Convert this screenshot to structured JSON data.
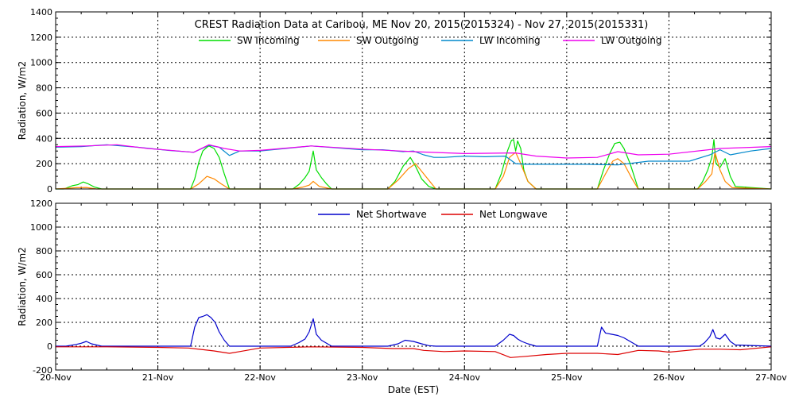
{
  "chart_data": [
    {
      "type": "line",
      "title": "CREST Radiation Data at Caribou, ME   Nov 20, 2015(2015324) - Nov 27, 2015(2015331)",
      "xlabel": "",
      "ylabel": "Radiation, W/m2",
      "xlim": [
        "20-Nov",
        "27-Nov"
      ],
      "ylim": [
        0,
        1400
      ],
      "yticks": [
        0,
        200,
        400,
        600,
        800,
        1000,
        1200,
        1400
      ],
      "x_unit": "days since 20-Nov",
      "grid": true,
      "legend_position": "top",
      "series": [
        {
          "name": "SW Incoming",
          "color": "#00dd00",
          "x": [
            0,
            0.08,
            0.16,
            0.22,
            0.27,
            0.32,
            0.38,
            0.45,
            1.32,
            1.36,
            1.4,
            1.44,
            1.48,
            1.5,
            1.55,
            1.6,
            1.65,
            1.7,
            2.32,
            2.38,
            2.44,
            2.48,
            2.52,
            2.55,
            2.6,
            2.65,
            2.7,
            3.25,
            3.32,
            3.4,
            3.47,
            3.52,
            3.58,
            3.65,
            3.72,
            4.3,
            4.36,
            4.42,
            4.46,
            4.48,
            4.5,
            4.52,
            4.55,
            4.58,
            4.62,
            4.7,
            5.3,
            5.36,
            5.42,
            5.47,
            5.52,
            5.56,
            5.62,
            5.7,
            6.28,
            6.33,
            6.38,
            6.42,
            6.44,
            6.46,
            6.5,
            6.55,
            6.6,
            6.65,
            7
          ],
          "y": [
            0,
            0,
            25,
            35,
            55,
            40,
            15,
            0,
            0,
            80,
            210,
            300,
            330,
            340,
            320,
            250,
            120,
            0,
            0,
            35,
            90,
            140,
            300,
            150,
            90,
            40,
            0,
            0,
            60,
            180,
            250,
            180,
            80,
            20,
            0,
            0,
            120,
            300,
            385,
            390,
            300,
            380,
            320,
            150,
            60,
            0,
            0,
            150,
            280,
            360,
            370,
            320,
            200,
            0,
            0,
            60,
            150,
            250,
            390,
            200,
            170,
            240,
            100,
            20,
            0
          ]
        },
        {
          "name": "SW Outgoing",
          "color": "#ff8800",
          "x": [
            0,
            0.1,
            0.2,
            0.3,
            0.4,
            1.32,
            1.4,
            1.48,
            1.55,
            1.62,
            1.7,
            2.32,
            2.42,
            2.48,
            2.52,
            2.58,
            2.7,
            3.25,
            3.35,
            3.45,
            3.52,
            3.6,
            3.72,
            4.3,
            4.38,
            4.44,
            4.5,
            4.55,
            4.62,
            4.7,
            5.3,
            5.38,
            5.45,
            5.5,
            5.56,
            5.64,
            5.7,
            6.28,
            6.36,
            6.42,
            6.45,
            6.5,
            6.55,
            6.62,
            7
          ],
          "y": [
            0,
            5,
            10,
            12,
            0,
            0,
            40,
            100,
            80,
            40,
            0,
            0,
            15,
            30,
            60,
            20,
            0,
            0,
            70,
            160,
            200,
            120,
            0,
            0,
            100,
            250,
            290,
            200,
            60,
            0,
            0,
            120,
            220,
            240,
            200,
            80,
            0,
            0,
            60,
            120,
            290,
            150,
            60,
            10,
            0
          ]
        },
        {
          "name": "LW Incoming",
          "color": "#0088cc",
          "x": [
            0,
            0.25,
            0.5,
            0.8,
            1.1,
            1.35,
            1.5,
            1.6,
            1.7,
            1.8,
            2.0,
            2.5,
            3.0,
            3.2,
            3.4,
            3.5,
            3.6,
            3.7,
            3.8,
            4.0,
            4.2,
            4.4,
            4.5,
            4.6,
            4.8,
            5.0,
            5.2,
            5.5,
            5.8,
            6.0,
            6.2,
            6.4,
            6.5,
            6.6,
            6.8,
            7
          ],
          "y": [
            330,
            335,
            350,
            330,
            305,
            290,
            345,
            330,
            265,
            300,
            300,
            340,
            310,
            310,
            295,
            300,
            270,
            250,
            250,
            260,
            255,
            260,
            200,
            195,
            195,
            195,
            195,
            190,
            220,
            220,
            220,
            270,
            310,
            270,
            300,
            320
          ]
        },
        {
          "name": "LW Outgoing",
          "color": "#ee00ee",
          "x": [
            0,
            0.3,
            0.6,
            0.9,
            1.2,
            1.35,
            1.5,
            1.65,
            1.8,
            2.0,
            2.5,
            3.0,
            3.5,
            4.0,
            4.5,
            4.7,
            5.0,
            5.3,
            5.5,
            5.7,
            6.0,
            6.5,
            7
          ],
          "y": [
            335,
            340,
            350,
            320,
            300,
            290,
            350,
            320,
            300,
            305,
            340,
            315,
            295,
            280,
            285,
            260,
            245,
            250,
            295,
            270,
            275,
            320,
            335
          ]
        }
      ]
    },
    {
      "type": "line",
      "title": "",
      "xlabel": "Date (EST)",
      "ylabel": "Radiation, W/m2",
      "xlim": [
        "20-Nov",
        "27-Nov"
      ],
      "ylim": [
        -200,
        1200
      ],
      "yticks": [
        -200,
        0,
        200,
        400,
        600,
        800,
        1000,
        1200
      ],
      "x_unit": "days since 20-Nov",
      "xtick_labels": [
        "20-Nov",
        "21-Nov",
        "22-Nov",
        "23-Nov",
        "24-Nov",
        "25-Nov",
        "26-Nov",
        "27-Nov"
      ],
      "grid": true,
      "legend_position": "top",
      "series": [
        {
          "name": "Net Shortwave",
          "color": "#0000cc",
          "x": [
            0,
            0.1,
            0.2,
            0.25,
            0.3,
            0.35,
            0.4,
            0.45,
            1.0,
            1.32,
            1.36,
            1.4,
            1.44,
            1.48,
            1.52,
            1.56,
            1.6,
            1.65,
            1.7,
            2.3,
            2.38,
            2.44,
            2.48,
            2.52,
            2.55,
            2.6,
            2.66,
            2.7,
            3.25,
            3.35,
            3.42,
            3.5,
            3.58,
            3.65,
            3.72,
            4.3,
            4.38,
            4.44,
            4.48,
            4.52,
            4.56,
            4.62,
            4.7,
            5.3,
            5.34,
            5.38,
            5.44,
            5.5,
            5.56,
            5.62,
            5.7,
            6.3,
            6.35,
            6.4,
            6.43,
            6.46,
            6.5,
            6.55,
            6.6,
            6.65,
            7
          ],
          "y": [
            0,
            0,
            15,
            25,
            40,
            20,
            10,
            0,
            0,
            0,
            160,
            240,
            250,
            265,
            240,
            200,
            120,
            50,
            0,
            0,
            30,
            60,
            120,
            230,
            100,
            50,
            20,
            0,
            0,
            20,
            50,
            40,
            20,
            5,
            0,
            0,
            50,
            100,
            90,
            60,
            40,
            20,
            0,
            0,
            160,
            110,
            100,
            90,
            70,
            40,
            0,
            0,
            30,
            80,
            140,
            70,
            60,
            100,
            40,
            10,
            0
          ]
        },
        {
          "name": "Net Longwave",
          "color": "#dd0000",
          "x": [
            0,
            0.5,
            1.0,
            1.3,
            1.45,
            1.55,
            1.7,
            1.8,
            2.0,
            2.5,
            3.0,
            3.3,
            3.5,
            3.6,
            3.8,
            4.0,
            4.3,
            4.45,
            4.6,
            4.8,
            5.0,
            5.3,
            5.5,
            5.7,
            5.9,
            6.0,
            6.3,
            6.5,
            6.7,
            7
          ],
          "y": [
            -5,
            -5,
            -10,
            -15,
            -30,
            -40,
            -60,
            -45,
            -15,
            -5,
            -10,
            -20,
            -20,
            -35,
            -45,
            -40,
            -45,
            -95,
            -85,
            -70,
            -60,
            -60,
            -70,
            -35,
            -40,
            -50,
            -25,
            -25,
            -30,
            -5
          ]
        }
      ]
    }
  ]
}
